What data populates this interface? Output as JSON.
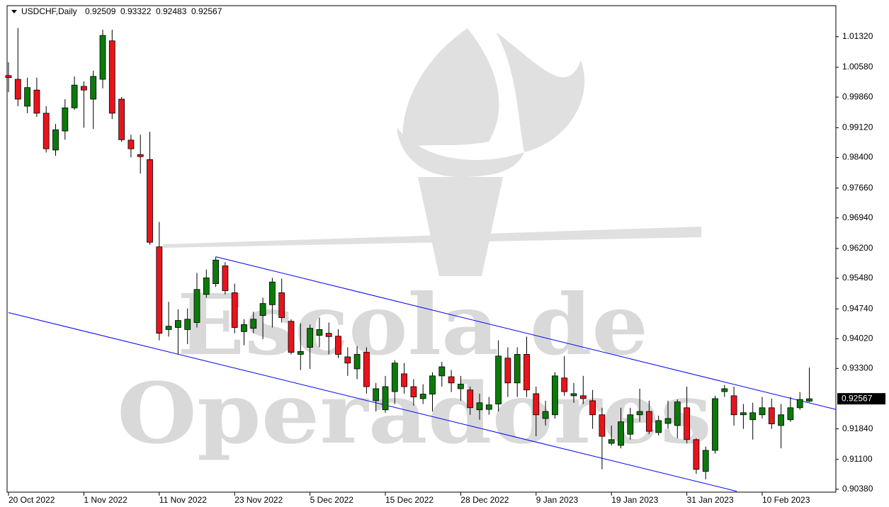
{
  "chart_data": {
    "type": "candlestick",
    "symbol": "USDCHF,Daily",
    "watermark": [
      "Escola de",
      "Operadores"
    ],
    "categories": [
      "20 Oct 2022",
      null,
      null,
      null,
      null,
      null,
      null,
      null,
      "1 Nov 2022",
      null,
      null,
      null,
      null,
      null,
      null,
      null,
      "11 Nov 2022",
      null,
      null,
      null,
      null,
      null,
      null,
      null,
      "23 Nov 2022",
      null,
      null,
      null,
      null,
      null,
      null,
      null,
      "5 Dec 2022",
      null,
      null,
      null,
      null,
      null,
      null,
      null,
      "15 Dec 2022",
      null,
      null,
      null,
      null,
      null,
      null,
      null,
      "28 Dec 2022",
      null,
      null,
      null,
      null,
      null,
      null,
      null,
      "9 Jan 2023",
      null,
      null,
      null,
      null,
      null,
      null,
      null,
      "19 Jan 2023",
      null,
      null,
      null,
      null,
      null,
      null,
      null,
      "31 Jan 2023",
      null,
      null,
      null,
      null,
      null,
      null,
      null,
      "10 Feb 2023",
      null,
      null,
      null,
      null,
      null
    ],
    "open": [
      1.0038,
      1.0029,
      0.9964,
      1.0003,
      0.9947,
      0.9858,
      0.9904,
      0.996,
      1.0012,
      0.9981,
      1.0029,
      1.0122,
      0.9981,
      0.9882,
      0.9847,
      0.9835,
      0.9624,
      0.9424,
      0.9429,
      0.9424,
      0.9441,
      0.9509,
      0.9535,
      0.9578,
      0.9513,
      0.9419,
      0.9427,
      0.9458,
      0.9484,
      0.9513,
      0.9444,
      0.9364,
      0.9381,
      0.941,
      0.9415,
      0.9408,
      0.9358,
      0.9329,
      0.9369,
      0.9252,
      0.923,
      0.9274,
      0.9317,
      0.9286,
      0.9257,
      0.9268,
      0.9312,
      0.931,
      0.9281,
      0.9278,
      0.923,
      0.9231,
      0.9244,
      0.9355,
      0.9295,
      0.9364,
      0.9269,
      0.9209,
      0.9218,
      0.9307,
      0.9264,
      0.9264,
      0.9252,
      0.9218,
      0.9149,
      0.9144,
      0.9171,
      0.9218,
      0.9226,
      0.9175,
      0.9197,
      0.9192,
      0.9235,
      0.9158,
      0.9081,
      0.9132,
      0.9274,
      0.9264,
      0.9218,
      0.9206,
      0.9218,
      0.9235,
      0.9192,
      0.9206,
      0.9235,
      0.92509
    ],
    "high": [
      1.007,
      1.0153,
      1.0033,
      1.0033,
      0.9964,
      0.9921,
      0.9981,
      1.0036,
      1.0024,
      1.005,
      1.0149,
      1.0149,
      0.9986,
      0.9895,
      0.9895,
      0.9902,
      0.9684,
      0.9491,
      0.9473,
      0.9475,
      0.9561,
      0.9569,
      0.96,
      0.9587,
      0.9535,
      0.9449,
      0.9467,
      0.9501,
      0.9549,
      0.9547,
      0.9449,
      0.9439,
      0.9436,
      0.9453,
      0.9441,
      0.9425,
      0.9381,
      0.9384,
      0.9381,
      0.9295,
      0.9312,
      0.935,
      0.9343,
      0.9304,
      0.9292,
      0.9321,
      0.9346,
      0.9326,
      0.9312,
      0.9286,
      0.9269,
      0.9261,
      0.9398,
      0.9381,
      0.9381,
      0.9407,
      0.9286,
      0.9252,
      0.9321,
      0.936,
      0.9295,
      0.9312,
      0.9278,
      0.9235,
      0.9192,
      0.9235,
      0.9235,
      0.9281,
      0.9252,
      0.9216,
      0.9252,
      0.9255,
      0.9286,
      0.9161,
      0.9141,
      0.9264,
      0.929,
      0.9286,
      0.9244,
      0.9247,
      0.9261,
      0.9257,
      0.9244,
      0.9261,
      0.9273,
      0.93322
    ],
    "low": [
      0.9998,
      0.9964,
      0.9947,
      0.9938,
      0.9852,
      0.9844,
      0.9883,
      0.9955,
      0.9912,
      0.9909,
      1.0007,
      0.9933,
      0.9878,
      0.984,
      0.9801,
      0.9629,
      0.9398,
      0.9407,
      0.9364,
      0.9389,
      0.9429,
      0.9501,
      0.9527,
      0.9509,
      0.9415,
      0.9386,
      0.9415,
      0.9401,
      0.9429,
      0.9441,
      0.9364,
      0.9326,
      0.9329,
      0.9381,
      0.9364,
      0.9355,
      0.9312,
      0.9304,
      0.9269,
      0.9226,
      0.9223,
      0.9244,
      0.9269,
      0.924,
      0.9244,
      0.9226,
      0.9286,
      0.9273,
      0.9252,
      0.9218,
      0.9206,
      0.9218,
      0.9226,
      0.9261,
      0.9261,
      0.9261,
      0.9166,
      0.9192,
      0.9209,
      0.9264,
      0.9247,
      0.9244,
      0.9184,
      0.9086,
      0.9144,
      0.9137,
      0.9158,
      0.9201,
      0.9171,
      0.9168,
      0.9184,
      0.9161,
      0.9149,
      0.9075,
      0.9062,
      0.9124,
      0.9261,
      0.9192,
      0.9184,
      0.9158,
      0.9209,
      0.9184,
      0.9137,
      0.9201,
      0.923,
      0.92483
    ],
    "close": [
      1.0033,
      0.9981,
      1.0009,
      0.9947,
      0.9861,
      0.9907,
      0.996,
      1.0015,
      1.0003,
      1.0036,
      1.0135,
      0.9947,
      0.9883,
      0.9861,
      0.9842,
      0.9635,
      0.9415,
      0.9432,
      0.9446,
      0.9449,
      0.9521,
      0.9549,
      0.9592,
      0.9518,
      0.9429,
      0.9436,
      0.9449,
      0.9487,
      0.9539,
      0.9453,
      0.9369,
      0.9371,
      0.9427,
      0.9424,
      0.9407,
      0.9364,
      0.9343,
      0.9364,
      0.9286,
      0.9281,
      0.9286,
      0.9343,
      0.9286,
      0.9261,
      0.9268,
      0.9312,
      0.9334,
      0.9295,
      0.9292,
      0.9235,
      0.9247,
      0.9242,
      0.936,
      0.9295,
      0.9364,
      0.9278,
      0.9218,
      0.9226,
      0.9312,
      0.9274,
      0.9269,
      0.9257,
      0.9218,
      0.9166,
      0.9158,
      0.9201,
      0.9218,
      0.9226,
      0.9178,
      0.9204,
      0.9209,
      0.9249,
      0.9158,
      0.9086,
      0.9132,
      0.9257,
      0.9281,
      0.9218,
      0.9223,
      0.9223,
      0.9235,
      0.9196,
      0.9218,
      0.9235,
      0.9255,
      0.92567
    ],
    "up_color": "#0b7a0b",
    "down_color": "#e8141c",
    "ylim": [
      0.9031,
      1.0207
    ],
    "yticks": [
      {
        "value": 1.0132,
        "label": "1.01320"
      },
      {
        "value": 1.0058,
        "label": "1.00580"
      },
      {
        "value": 0.9986,
        "label": "0.99860"
      },
      {
        "value": 0.9912,
        "label": "0.99120"
      },
      {
        "value": 0.984,
        "label": "0.98400"
      },
      {
        "value": 0.9766,
        "label": "0.97660"
      },
      {
        "value": 0.9694,
        "label": "0.96940"
      },
      {
        "value": 0.962,
        "label": "0.96200"
      },
      {
        "value": 0.9548,
        "label": "0.95480"
      },
      {
        "value": 0.9474,
        "label": "0.94740"
      },
      {
        "value": 0.9402,
        "label": "0.94020"
      },
      {
        "value": 0.933,
        "label": "0.93300"
      },
      {
        "value": 0.9184,
        "label": "0.91840"
      },
      {
        "value": 0.911,
        "label": "0.91100"
      },
      {
        "value": 0.9038,
        "label": "0.90380"
      }
    ],
    "trendlines": [
      {
        "x": [
          22,
          87.8
        ],
        "y": [
          0.96,
          0.9231
        ],
        "color": "#0000ff"
      },
      {
        "x": [
          0,
          77.3
        ],
        "y": [
          0.9465,
          0.9033
        ],
        "color": "#0000ff"
      }
    ]
  }
}
